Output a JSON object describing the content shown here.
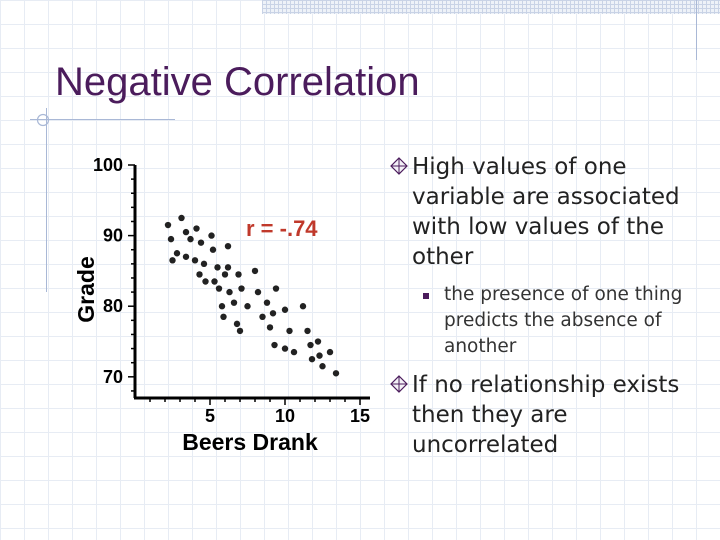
{
  "slide": {
    "title": "Negative Correlation",
    "bullets": [
      {
        "text": "High values of one variable are associated with low values of the other",
        "sub": [
          "the presence of one thing predicts the absence of another"
        ]
      },
      {
        "text": "If no relationship exists then they are uncorrelated",
        "sub": []
      }
    ]
  },
  "colors": {
    "title": "#4b1c5c",
    "annotation": "#c0392b",
    "points": "#222222"
  },
  "chart_data": {
    "type": "scatter",
    "xlabel": "Beers Drank",
    "ylabel": "Grade",
    "xticks": [
      "5",
      "10",
      "15"
    ],
    "yticks": [
      "100",
      "90",
      "80",
      "70"
    ],
    "xlim": [
      0,
      15
    ],
    "ylim": [
      67,
      100
    ],
    "annotation": "r = -.74",
    "points": [
      [
        2.2,
        91.5
      ],
      [
        2.4,
        89.5
      ],
      [
        2.8,
        87.5
      ],
      [
        2.5,
        86.5
      ],
      [
        3.1,
        92.5
      ],
      [
        3.4,
        90.5
      ],
      [
        3.7,
        89.5
      ],
      [
        3.4,
        87.0
      ],
      [
        4.0,
        86.5
      ],
      [
        4.1,
        91.0
      ],
      [
        4.4,
        89.0
      ],
      [
        4.6,
        86.0
      ],
      [
        4.3,
        84.5
      ],
      [
        4.7,
        83.5
      ],
      [
        5.1,
        90.0
      ],
      [
        5.2,
        88.0
      ],
      [
        5.5,
        85.5
      ],
      [
        5.3,
        83.5
      ],
      [
        5.6,
        82.5
      ],
      [
        6.2,
        88.5
      ],
      [
        6.2,
        85.5
      ],
      [
        5.8,
        80.0
      ],
      [
        5.9,
        78.5
      ],
      [
        6.3,
        82.0
      ],
      [
        6.6,
        80.5
      ],
      [
        6.9,
        84.5
      ],
      [
        7.1,
        82.5
      ],
      [
        6.8,
        77.5
      ],
      [
        7.0,
        76.5
      ],
      [
        7.5,
        80.0
      ],
      [
        8.0,
        85.0
      ],
      [
        8.2,
        82.0
      ],
      [
        8.8,
        80.5
      ],
      [
        8.5,
        78.5
      ],
      [
        9.0,
        77.0
      ],
      [
        9.3,
        74.5
      ],
      [
        9.4,
        82.5
      ],
      [
        10.0,
        79.5
      ],
      [
        10.3,
        76.5
      ],
      [
        10.0,
        74.0
      ],
      [
        11.2,
        80.0
      ],
      [
        10.6,
        73.5
      ],
      [
        11.5,
        76.5
      ],
      [
        11.7,
        74.5
      ],
      [
        11.8,
        72.5
      ],
      [
        12.2,
        75.0
      ],
      [
        12.5,
        71.5
      ],
      [
        13.0,
        73.5
      ],
      [
        13.4,
        70.5
      ],
      [
        6.0,
        84.5
      ],
      [
        9.2,
        79.0
      ],
      [
        12.3,
        73.0
      ]
    ]
  }
}
